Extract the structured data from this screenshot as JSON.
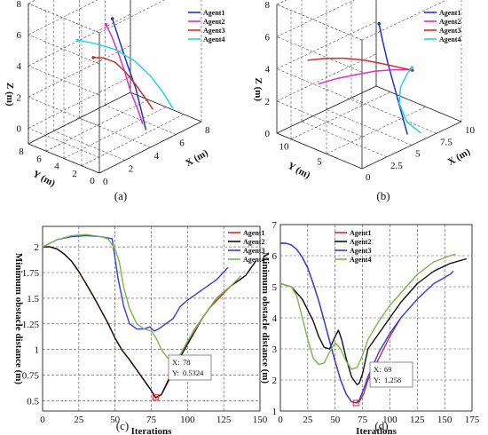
{
  "chart_data": [
    {
      "type": "line3d",
      "panel_label": "(a)",
      "xlabel": "X (m)",
      "ylabel": "Y (m)",
      "zlabel": "Z (m)",
      "x_ticks": [
        "0",
        "2",
        "4",
        "6",
        "8"
      ],
      "y_ticks": [
        "0",
        "2",
        "4",
        "6",
        "8"
      ],
      "z_ticks": [
        "0",
        "2",
        "4",
        "6",
        "8"
      ],
      "xlim": [
        0,
        8
      ],
      "ylim": [
        0,
        8
      ],
      "zlim": [
        -1,
        8
      ],
      "grid": true,
      "legend": "top-right",
      "series": [
        {
          "name": "Agent1",
          "color": "#2233cc",
          "points": [
            [
              4.0,
              0.5,
              0.0
            ],
            [
              4.4,
              1.6,
              0.8
            ],
            [
              4.8,
              2.8,
              1.8
            ],
            [
              5.0,
              4.0,
              2.9
            ],
            [
              5.2,
              5.2,
              4.1
            ],
            [
              5.4,
              6.3,
              5.2
            ]
          ]
        },
        {
          "name": "Agent2",
          "color": "#e030c0",
          "points": [
            [
              5.2,
              2.6,
              -0.6
            ],
            [
              5.0,
              2.9,
              0.4
            ],
            [
              4.8,
              3.4,
              1.5
            ],
            [
              4.6,
              3.8,
              2.8
            ],
            [
              4.4,
              4.2,
              3.9
            ],
            [
              4.2,
              4.7,
              5.0
            ],
            [
              4.0,
              5.0,
              5.7
            ]
          ]
        },
        {
          "name": "Agent3",
          "color": "#cc2f2a",
          "points": [
            [
              6.0,
              2.6,
              0.0
            ],
            [
              5.8,
              3.2,
              0.7
            ],
            [
              5.4,
              3.7,
              1.6
            ],
            [
              4.9,
              4.1,
              2.5
            ],
            [
              4.3,
              4.4,
              3.3
            ],
            [
              3.6,
              4.7,
              3.8
            ],
            [
              3.0,
              5.0,
              4.0
            ]
          ]
        },
        {
          "name": "Agent4",
          "color": "#22d4e4",
          "points": [
            [
              6.8,
              1.5,
              0.0
            ],
            [
              6.5,
              2.2,
              1.0
            ],
            [
              6.1,
              3.0,
              2.0
            ],
            [
              5.5,
              3.9,
              3.0
            ],
            [
              4.6,
              4.8,
              3.9
            ],
            [
              3.6,
              5.6,
              4.5
            ],
            [
              2.6,
              6.2,
              5.0
            ]
          ]
        }
      ]
    },
    {
      "type": "line3d",
      "panel_label": "(b)",
      "xlabel": "X (m)",
      "ylabel": "Y (m)",
      "zlabel": "Z (m)",
      "x_ticks": [
        "0",
        "2.5",
        "5",
        "7.5",
        "10"
      ],
      "y_ticks": [
        "5",
        "10"
      ],
      "z_ticks": [
        "0",
        "2",
        "4",
        "6",
        "8"
      ],
      "xlim": [
        0,
        10
      ],
      "ylim": [
        0,
        12
      ],
      "zlim": [
        0,
        8
      ],
      "grid": true,
      "legend": "top-right",
      "series": [
        {
          "name": "Agent1",
          "color": "#2233cc",
          "points": [
            [
              6.0,
              2.0,
              0.0
            ],
            [
              6.2,
              3.2,
              1.2
            ],
            [
              6.4,
              4.4,
              2.4
            ],
            [
              6.6,
              5.6,
              3.6
            ],
            [
              6.8,
              6.6,
              4.7
            ],
            [
              7.0,
              7.4,
              5.6
            ]
          ]
        },
        {
          "name": "Agent2",
          "color": "#e030c0",
          "points": [
            [
              0.6,
              7.0,
              3.8
            ],
            [
              2.4,
              7.0,
              3.6
            ],
            [
              4.4,
              6.9,
              3.3
            ],
            [
              6.2,
              6.8,
              3.0
            ],
            [
              8.0,
              6.6,
              2.6
            ],
            [
              9.5,
              6.4,
              2.2
            ]
          ]
        },
        {
          "name": "Agent3",
          "color": "#cc2f2a",
          "points": [
            [
              0.6,
              8.5,
              5.0
            ],
            [
              2.2,
              8.2,
              4.7
            ],
            [
              3.8,
              7.9,
              4.3
            ],
            [
              5.4,
              7.5,
              3.8
            ],
            [
              7.0,
              7.0,
              3.2
            ],
            [
              8.5,
              6.5,
              2.6
            ],
            [
              9.5,
              6.2,
              2.2
            ]
          ]
        },
        {
          "name": "Agent4",
          "color": "#22d4e4",
          "points": [
            [
              6.8,
              1.2,
              0.0
            ],
            [
              6.3,
              2.5,
              0.6
            ],
            [
              6.6,
              4.0,
              1.4
            ],
            [
              7.6,
              5.2,
              1.9
            ],
            [
              8.8,
              6.0,
              2.2
            ],
            [
              9.6,
              6.4,
              2.3
            ]
          ]
        }
      ]
    },
    {
      "type": "line",
      "panel_label": "(c)",
      "xlabel": "Iterations",
      "ylabel": "Minimum obstacle distance (m)",
      "xlim": [
        0,
        150
      ],
      "ylim": [
        0.4,
        2.2
      ],
      "x_ticks": [
        0,
        25,
        50,
        75,
        100,
        125,
        150
      ],
      "y_ticks": [
        0.5,
        0.75,
        1,
        1.25,
        1.5,
        1.75,
        2
      ],
      "y_tick_labels": [
        "0.5",
        "0.75",
        "1",
        "1.25",
        "1.5",
        "1.75",
        "2"
      ],
      "grid": true,
      "legend": "top-right",
      "annotation": {
        "x_label": "X:",
        "x_value": "78",
        "y_label": "Y:",
        "y_value": "0.5324"
      },
      "series": [
        {
          "name": "Agent1",
          "color": "#cc2f2a",
          "x": [
            0,
            5,
            10,
            15,
            20,
            25,
            30,
            35,
            40,
            45,
            50,
            55,
            60,
            65,
            70,
            75,
            78,
            82,
            88,
            95,
            105,
            115,
            125,
            130
          ],
          "y": [
            2.0,
            2.0,
            1.98,
            1.93,
            1.86,
            1.76,
            1.64,
            1.52,
            1.39,
            1.26,
            1.11,
            0.99,
            0.9,
            0.8,
            0.7,
            0.6,
            0.53,
            0.56,
            0.72,
            0.95,
            1.2,
            1.4,
            1.55,
            1.62
          ]
        },
        {
          "name": "Agent2",
          "color": "#111111",
          "x": [
            0,
            5,
            10,
            15,
            20,
            25,
            30,
            35,
            40,
            45,
            50,
            55,
            60,
            65,
            70,
            75,
            78,
            82,
            90,
            100,
            110,
            120,
            130,
            140,
            147
          ],
          "y": [
            2.0,
            2.0,
            1.98,
            1.93,
            1.86,
            1.76,
            1.64,
            1.52,
            1.39,
            1.26,
            1.11,
            0.99,
            0.9,
            0.8,
            0.7,
            0.6,
            0.53,
            0.56,
            0.8,
            1.05,
            1.3,
            1.5,
            1.62,
            1.72,
            1.86
          ]
        },
        {
          "name": "Agent3",
          "color": "#3a3adf",
          "x": [
            0,
            10,
            20,
            30,
            40,
            48,
            52,
            56,
            60,
            65,
            70,
            74,
            77,
            80,
            84,
            90,
            95,
            100,
            110,
            120,
            128
          ],
          "y": [
            2.0,
            2.07,
            2.1,
            2.11,
            2.1,
            2.08,
            1.7,
            1.42,
            1.25,
            1.2,
            1.2,
            1.22,
            1.18,
            1.2,
            1.24,
            1.3,
            1.42,
            1.48,
            1.58,
            1.68,
            1.8
          ]
        },
        {
          "name": "Agent4",
          "color": "#7ab648",
          "x": [
            0,
            10,
            20,
            30,
            40,
            45,
            50,
            53,
            56,
            60,
            65,
            70,
            75,
            78,
            82,
            86,
            90,
            95,
            100,
            110,
            120,
            130,
            137
          ],
          "y": [
            2.0,
            2.07,
            2.11,
            2.12,
            2.1,
            2.08,
            1.98,
            1.85,
            1.6,
            1.4,
            1.25,
            1.2,
            1.18,
            1.12,
            1.0,
            0.92,
            0.9,
            0.95,
            1.08,
            1.3,
            1.5,
            1.62,
            1.72
          ]
        }
      ]
    },
    {
      "type": "line",
      "panel_label": "(d)",
      "xlabel": "Iterations",
      "ylabel": "Minimum obstacle distance (m)",
      "xlim": [
        0,
        175
      ],
      "ylim": [
        1,
        7
      ],
      "x_ticks": [
        0,
        25,
        50,
        75,
        100,
        125,
        150,
        175
      ],
      "y_ticks": [
        1,
        2,
        3,
        4,
        5,
        6,
        7
      ],
      "y_tick_labels": [
        "1",
        "2",
        "3",
        "4",
        "5",
        "6",
        "7"
      ],
      "grid": true,
      "legend": "top-center",
      "annotation": {
        "x_label": "X:",
        "x_value": "69",
        "y_label": "Y:",
        "y_value": "1.258"
      },
      "series": [
        {
          "name": "Agent1",
          "color": "#cc2f2a",
          "x": [
            0,
            5,
            10,
            15,
            20,
            25,
            30,
            35,
            40,
            45,
            50,
            55,
            60,
            65,
            69,
            72,
            76,
            80,
            90,
            100,
            110
          ],
          "y": [
            6.4,
            6.4,
            6.35,
            6.2,
            5.95,
            5.6,
            5.1,
            4.55,
            3.9,
            3.25,
            2.6,
            2.0,
            1.55,
            1.3,
            1.26,
            1.3,
            1.55,
            2.0,
            2.7,
            3.4,
            4.0
          ]
        },
        {
          "name": "Agent2",
          "color": "#111111",
          "x": [
            0,
            10,
            20,
            30,
            35,
            40,
            45,
            50,
            53,
            56,
            60,
            65,
            70,
            72,
            75,
            80,
            90,
            100,
            110,
            125,
            140,
            155,
            170
          ],
          "y": [
            5.1,
            5.0,
            4.6,
            3.9,
            3.4,
            3.05,
            3.0,
            3.4,
            3.6,
            3.3,
            2.7,
            2.1,
            1.85,
            1.9,
            2.2,
            3.0,
            3.5,
            4.0,
            4.5,
            5.1,
            5.5,
            5.75,
            5.9
          ]
        },
        {
          "name": "Agent3",
          "color": "#3a3adf",
          "x": [
            0,
            5,
            10,
            15,
            20,
            25,
            30,
            35,
            40,
            45,
            50,
            55,
            60,
            65,
            69,
            72,
            76,
            80,
            90,
            100,
            110,
            125,
            140,
            155,
            158
          ],
          "y": [
            6.4,
            6.4,
            6.35,
            6.2,
            5.95,
            5.6,
            5.1,
            4.55,
            3.9,
            3.25,
            2.6,
            2.0,
            1.55,
            1.3,
            1.26,
            1.35,
            1.7,
            2.1,
            2.9,
            3.5,
            4.0,
            4.6,
            5.1,
            5.4,
            5.5
          ]
        },
        {
          "name": "Agent4",
          "color": "#7ab648",
          "x": [
            0,
            10,
            15,
            20,
            25,
            30,
            35,
            40,
            45,
            50,
            55,
            60,
            65,
            70,
            75,
            80,
            90,
            100,
            110,
            125,
            140,
            155,
            160
          ],
          "y": [
            5.1,
            5.0,
            4.7,
            4.0,
            3.3,
            2.7,
            2.5,
            2.55,
            2.9,
            3.2,
            3.0,
            2.6,
            2.35,
            2.4,
            2.8,
            3.3,
            3.9,
            4.4,
            4.8,
            5.4,
            5.8,
            6.0,
            6.05
          ]
        }
      ]
    }
  ]
}
